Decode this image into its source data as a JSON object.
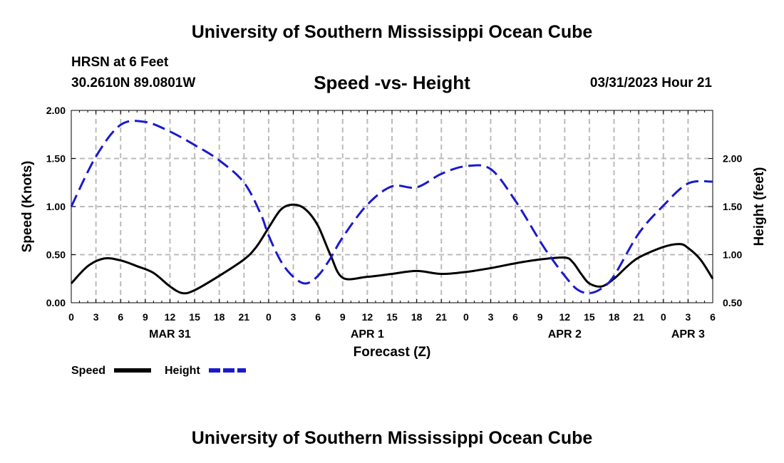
{
  "header": {
    "title": "University of Southern Mississippi Ocean Cube",
    "station": "HRSN at 6 Feet",
    "coords": "30.2610N  89.0801W",
    "subtitle": "Speed -vs- Height",
    "datetime": "03/31/2023 Hour 21",
    "footer_title": "University of Southern Mississippi Ocean Cube"
  },
  "colors": {
    "speed": "#000000",
    "height": "#1a1acc",
    "grid": "#bbbbbb"
  },
  "chart_data": {
    "type": "line",
    "title": "Speed -vs- Height",
    "xlabel": "Forecast (Z)",
    "ylabel": "Speed (Knots)",
    "y2label": "Height (feet)",
    "x_range": [
      0,
      78
    ],
    "x_ticks": [
      0,
      3,
      6,
      9,
      12,
      15,
      18,
      21,
      24,
      27,
      30,
      33,
      36,
      39,
      42,
      45,
      48,
      51,
      54,
      57,
      60,
      63,
      66,
      69,
      72,
      75,
      78
    ],
    "x_tick_labels": [
      "0",
      "3",
      "6",
      "9",
      "12",
      "15",
      "18",
      "21",
      "0",
      "3",
      "6",
      "9",
      "12",
      "15",
      "18",
      "21",
      "0",
      "3",
      "6",
      "9",
      "12",
      "15",
      "18",
      "21",
      "0",
      "3",
      "6"
    ],
    "date_labels": [
      {
        "x": 12,
        "label": "MAR 31"
      },
      {
        "x": 36,
        "label": "APR 1"
      },
      {
        "x": 60,
        "label": "APR 2"
      },
      {
        "x": 75,
        "label": "APR 3"
      }
    ],
    "ylim": [
      0,
      2
    ],
    "y_ticks": [
      0,
      0.5,
      1.0,
      1.5,
      2.0
    ],
    "y_tick_labels": [
      "0.00",
      "0.50",
      "1.00",
      "1.50",
      "2.00"
    ],
    "y2lim": [
      0.5,
      2.5
    ],
    "y2_ticks": [
      0.5,
      1.0,
      1.5,
      2.0
    ],
    "y2_tick_labels": [
      "0.50",
      "1.00",
      "1.50",
      "2.00"
    ],
    "legend": [
      {
        "label": "Speed",
        "series": "speed"
      },
      {
        "label": "Height",
        "series": "height"
      }
    ],
    "series": [
      {
        "name": "Speed",
        "axis": "left",
        "style": "solid",
        "x": [
          0,
          2,
          4,
          6,
          8,
          10,
          12,
          13.5,
          15,
          18,
          21,
          22.5,
          24,
          25.5,
          27,
          28.5,
          30,
          31.5,
          33,
          36,
          39,
          42,
          45,
          48,
          51,
          54,
          57,
          60,
          61,
          62,
          63,
          64.5,
          66,
          67.5,
          69,
          72,
          74,
          75,
          76.5,
          78
        ],
        "values": [
          0.2,
          0.38,
          0.46,
          0.44,
          0.38,
          0.31,
          0.17,
          0.1,
          0.13,
          0.28,
          0.45,
          0.58,
          0.78,
          0.97,
          1.02,
          0.97,
          0.8,
          0.5,
          0.26,
          0.27,
          0.3,
          0.33,
          0.3,
          0.32,
          0.36,
          0.41,
          0.45,
          0.47,
          0.42,
          0.3,
          0.2,
          0.17,
          0.25,
          0.37,
          0.47,
          0.58,
          0.61,
          0.57,
          0.45,
          0.25
        ]
      },
      {
        "name": "Height",
        "axis": "right",
        "style": "dashed",
        "x": [
          0,
          3,
          6,
          9,
          12,
          15,
          18,
          21,
          23,
          24,
          25.5,
          27,
          28.5,
          30,
          31.5,
          33,
          36,
          39,
          42,
          45,
          48,
          51,
          54,
          57,
          58.5,
          60,
          61.5,
          63,
          64.5,
          66,
          69,
          72,
          75,
          78
        ],
        "values": [
          1.5,
          2.02,
          2.35,
          2.38,
          2.28,
          2.14,
          1.98,
          1.75,
          1.43,
          1.2,
          0.93,
          0.77,
          0.7,
          0.78,
          0.96,
          1.18,
          1.52,
          1.71,
          1.7,
          1.84,
          1.92,
          1.89,
          1.56,
          1.14,
          0.95,
          0.78,
          0.64,
          0.6,
          0.65,
          0.78,
          1.22,
          1.51,
          1.74,
          1.76
        ]
      }
    ]
  }
}
